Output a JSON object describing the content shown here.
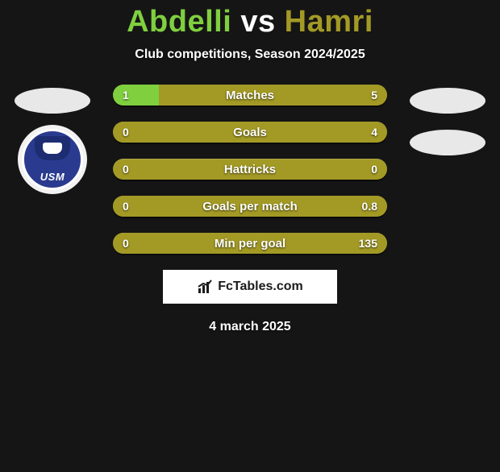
{
  "title_p1": "Abdelli",
  "title_vs": " vs ",
  "title_p2": "Hamri",
  "colors": {
    "p1": "#7fcf3f",
    "p2": "#a39a25",
    "bar_base": "#a39a25",
    "bar_text": "#ffffff",
    "brand_icon": "#1b1b1b"
  },
  "subtitle": "Club competitions, Season 2024/2025",
  "club_badge_text": "USM",
  "rows": [
    {
      "label": "Matches",
      "left": "1",
      "right": "5",
      "left_pct": 16.7,
      "right_pct": 83.3
    },
    {
      "label": "Goals",
      "left": "0",
      "right": "4",
      "left_pct": 0,
      "right_pct": 100
    },
    {
      "label": "Hattricks",
      "left": "0",
      "right": "0",
      "left_pct": 0,
      "right_pct": 0
    },
    {
      "label": "Goals per match",
      "left": "0",
      "right": "0.8",
      "left_pct": 0,
      "right_pct": 100
    },
    {
      "label": "Min per goal",
      "left": "0",
      "right": "135",
      "left_pct": 0,
      "right_pct": 100
    }
  ],
  "brand": "FcTables.com",
  "date": "4 march 2025"
}
